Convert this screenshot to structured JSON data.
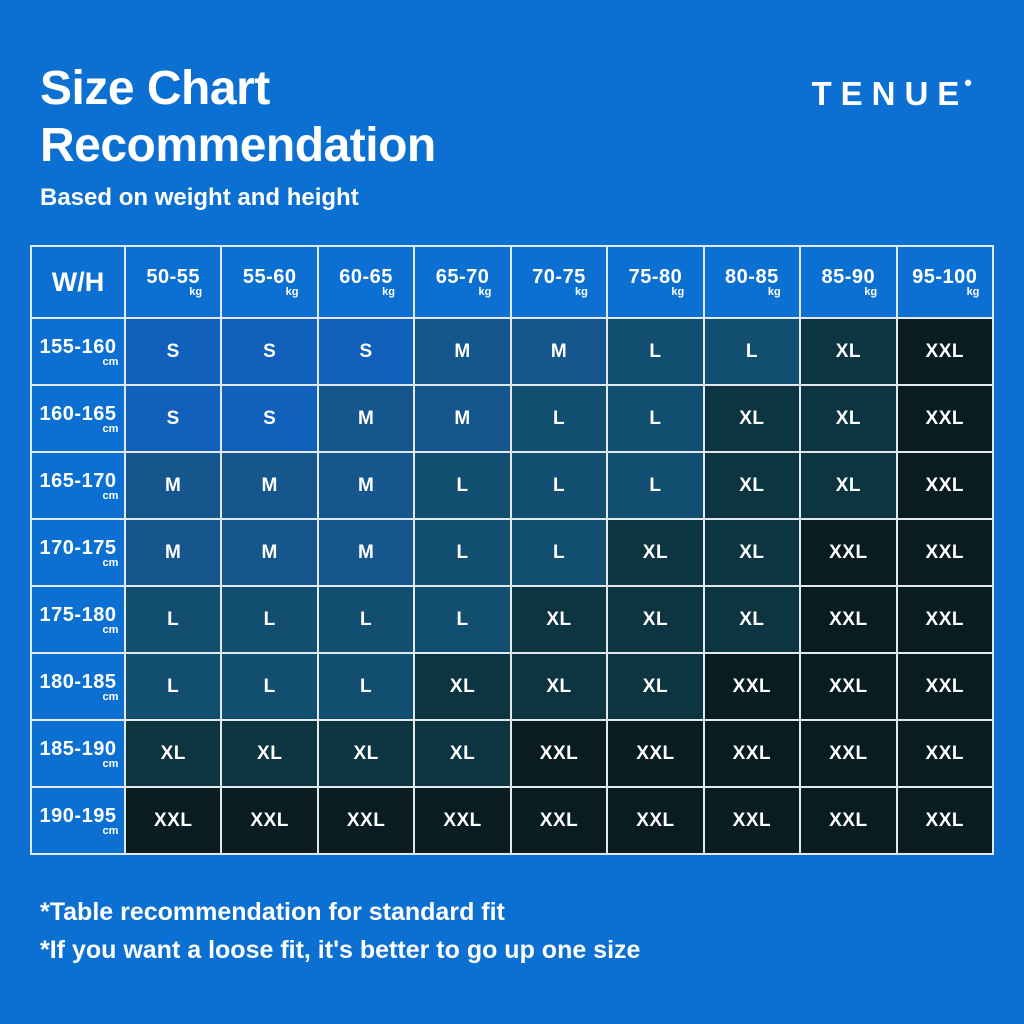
{
  "brand": {
    "name": "TENUE",
    "dot": "•"
  },
  "header": {
    "title_line1": "Size Chart",
    "title_line2": "Recommendation",
    "subtitle": "Based on weight and height"
  },
  "footnotes": {
    "line1": "*Table recommendation for standard fit",
    "line2": "*If you want a loose fit, it's better to go up one size"
  },
  "chart_data": {
    "type": "table",
    "title": "Size Chart Recommendation",
    "subtitle": "Based on weight and height",
    "corner_label": "W/H",
    "weight_unit": "kg",
    "height_unit": "cm",
    "weight_columns_kg": [
      "50-55",
      "55-60",
      "60-65",
      "65-70",
      "70-75",
      "75-80",
      "80-85",
      "85-90",
      "95-100"
    ],
    "height_rows_cm": [
      "155-160",
      "160-165",
      "165-170",
      "170-175",
      "175-180",
      "180-185",
      "185-190",
      "190-195"
    ],
    "values": [
      [
        "S",
        "S",
        "S",
        "M",
        "M",
        "L",
        "L",
        "XL",
        "XXL"
      ],
      [
        "S",
        "S",
        "M",
        "M",
        "L",
        "L",
        "XL",
        "XL",
        "XXL"
      ],
      [
        "M",
        "M",
        "M",
        "L",
        "L",
        "L",
        "XL",
        "XL",
        "XXL"
      ],
      [
        "M",
        "M",
        "M",
        "L",
        "L",
        "XL",
        "XL",
        "XXL",
        "XXL"
      ],
      [
        "L",
        "L",
        "L",
        "L",
        "XL",
        "XL",
        "XL",
        "XXL",
        "XXL"
      ],
      [
        "L",
        "L",
        "L",
        "XL",
        "XL",
        "XL",
        "XXL",
        "XXL",
        "XXL"
      ],
      [
        "XL",
        "XL",
        "XL",
        "XL",
        "XXL",
        "XXL",
        "XXL",
        "XXL",
        "XXL"
      ],
      [
        "XXL",
        "XXL",
        "XXL",
        "XXL",
        "XXL",
        "XXL",
        "XXL",
        "XXL",
        "XXL"
      ]
    ],
    "size_colors": {
      "S": "#1161BC",
      "M": "#15568C",
      "L": "#124E70",
      "XL": "#0D3541",
      "XXL": "#091C22"
    },
    "colors": {
      "background": "#0C70D2",
      "grid": "#E3E8EC",
      "text": "#FFFFFF"
    }
  }
}
